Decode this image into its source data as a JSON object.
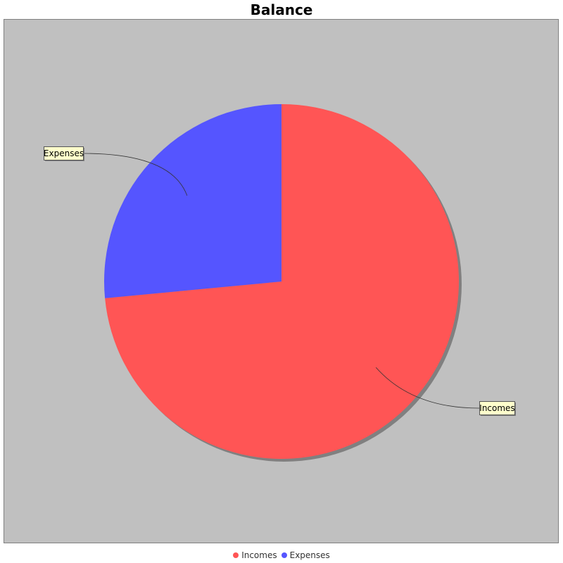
{
  "chart_data": {
    "type": "pie",
    "title": "Balance",
    "categories": [
      "Incomes",
      "Expenses"
    ],
    "values": [
      73.5,
      26.5
    ],
    "colors": [
      "#ff5555",
      "#5555ff"
    ],
    "label_box_color": "#ffffcc",
    "plot_background": "#c0c0c0",
    "legend_position": "bottom"
  }
}
